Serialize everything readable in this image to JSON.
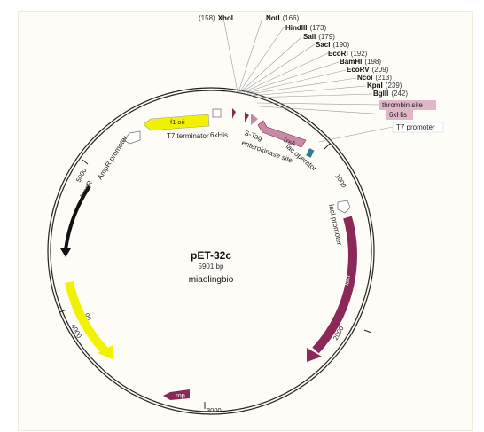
{
  "plasmid": {
    "name": "pET-32c",
    "length_label": "5901 bp",
    "author": "miaolingbio"
  },
  "restriction_sites": [
    {
      "name": "XhoI",
      "pos": "(158)"
    },
    {
      "name": "NotI",
      "pos": "(166)"
    },
    {
      "name": "HindIII",
      "pos": "(173)"
    },
    {
      "name": "SalI",
      "pos": "(179)"
    },
    {
      "name": "SacI",
      "pos": "(190)"
    },
    {
      "name": "EcoRI",
      "pos": "(192)"
    },
    {
      "name": "BamHI",
      "pos": "(198)"
    },
    {
      "name": "EcoRV",
      "pos": "(209)"
    },
    {
      "name": "NcoI",
      "pos": "(213)"
    },
    {
      "name": "KpnI",
      "pos": "(239)"
    },
    {
      "name": "BglII",
      "pos": "(242)"
    }
  ],
  "tagged_features": {
    "thrombin": "thrombin site",
    "his": "6xHis",
    "t7promoter": "T7 promoter"
  },
  "features": {
    "t7_terminator": "T7 terminator",
    "his_tag": "6xHis",
    "s_tag": "S-Tag",
    "enterokinase": "enterokinase site",
    "lac_operator": "lac operator",
    "trxa": "TrxA",
    "f1_ori": "f1 ori",
    "ampr_promoter": "AmpR promoter",
    "ampr": "AmpR",
    "laci_promoter": "lacI promoter",
    "laci": "lacI",
    "ori": "ori",
    "rop": "rop"
  },
  "ticks": {
    "t1000": "1000",
    "t2000": "2000",
    "t3000": "3000",
    "t4000": "4000",
    "t5000": "5000"
  },
  "colors": {
    "yellow_feature": "#f2f200",
    "magenta_feature": "#8b2858",
    "pink_feature": "#c98aa6",
    "teal_feature": "#2f7f8f",
    "tag_bg_pink": "#e0b6c8",
    "black_feature": "#111111"
  }
}
